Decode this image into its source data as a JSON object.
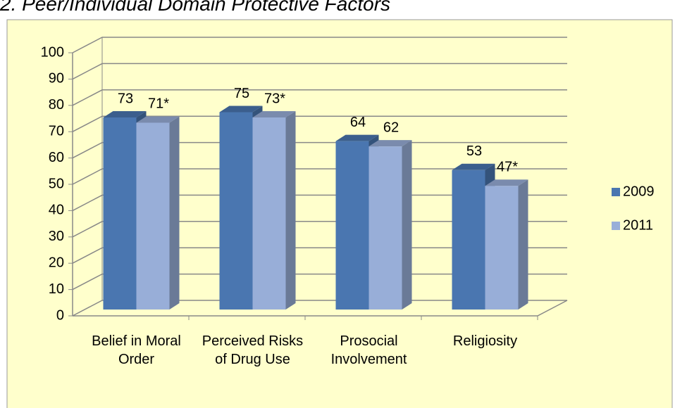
{
  "chart_data": {
    "type": "bar3d",
    "title": "2. Peer/Individual Domain Protective Factors",
    "categories": [
      "Belief in Moral Order",
      "Perceived Risks of Drug Use",
      "Prosocial Involvement",
      "Religiosity"
    ],
    "series": [
      {
        "name": "2009",
        "color": "#4a76b0",
        "values": [
          73,
          75,
          64,
          53
        ]
      },
      {
        "name": "2011",
        "color": "#98aed8",
        "values": [
          71,
          73,
          62,
          47
        ],
        "value_labels": [
          "71*",
          "73*",
          "62",
          "47*"
        ]
      }
    ],
    "ylim": [
      0,
      100
    ],
    "yticks": [
      0,
      10,
      20,
      30,
      40,
      50,
      60,
      70,
      80,
      90,
      100
    ],
    "legend": "right"
  }
}
